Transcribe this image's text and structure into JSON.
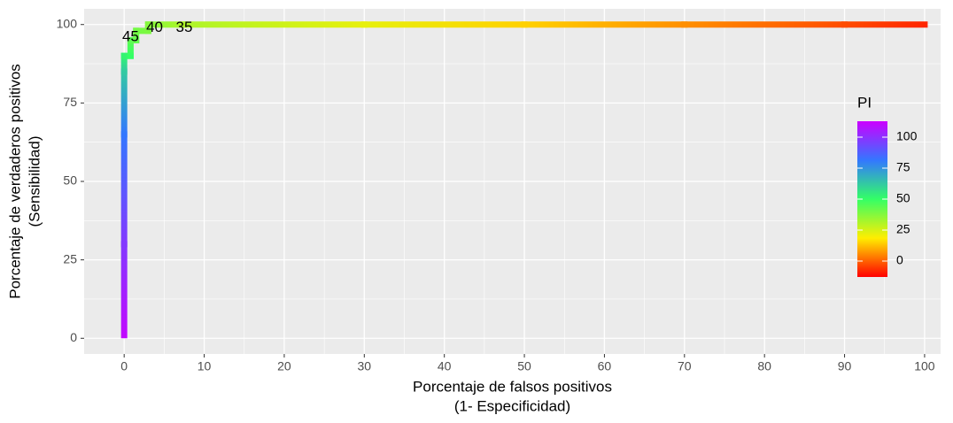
{
  "chart_data": {
    "type": "line",
    "xlabel": [
      "Porcentaje de falsos positivos",
      "(1- Especificidad)"
    ],
    "ylabel": [
      "Porcentaje de verdaderos positivos",
      "(Sensibilidad)"
    ],
    "x": [
      0,
      0,
      0,
      0,
      0,
      0.8,
      0.8,
      1.5,
      1.5,
      3,
      3,
      7.5,
      30,
      50,
      70,
      90,
      100
    ],
    "series": [
      {
        "name": "PI",
        "values": [
          1,
          30,
          65,
          85,
          90,
          90,
          95,
          95,
          98,
          98,
          100,
          100,
          100,
          100,
          100,
          100,
          100
        ],
        "color_values": [
          98,
          88,
          75,
          60,
          52,
          50,
          45,
          44,
          42,
          41,
          40,
          35,
          28,
          22,
          15,
          8,
          4
        ]
      }
    ],
    "annotations": [
      {
        "text": "45",
        "x": 0.8,
        "y": 96
      },
      {
        "text": "40",
        "x": 3.8,
        "y": 99
      },
      {
        "text": "35",
        "x": 7.5,
        "y": 99
      }
    ],
    "xlim": [
      -5,
      102
    ],
    "ylim": [
      -5,
      105
    ],
    "xticks": [
      0,
      10,
      20,
      30,
      40,
      50,
      60,
      70,
      80,
      90,
      100
    ],
    "yticks": [
      0,
      25,
      50,
      75,
      100
    ],
    "grid": true,
    "colorbar": {
      "title": "PI",
      "lim": [
        0,
        100
      ],
      "ticks": [
        0,
        25,
        50,
        75,
        100
      ],
      "colors": [
        "#ff0000",
        "#ffee00",
        "#33ff66",
        "#3377ff",
        "#cc00ff"
      ]
    }
  }
}
